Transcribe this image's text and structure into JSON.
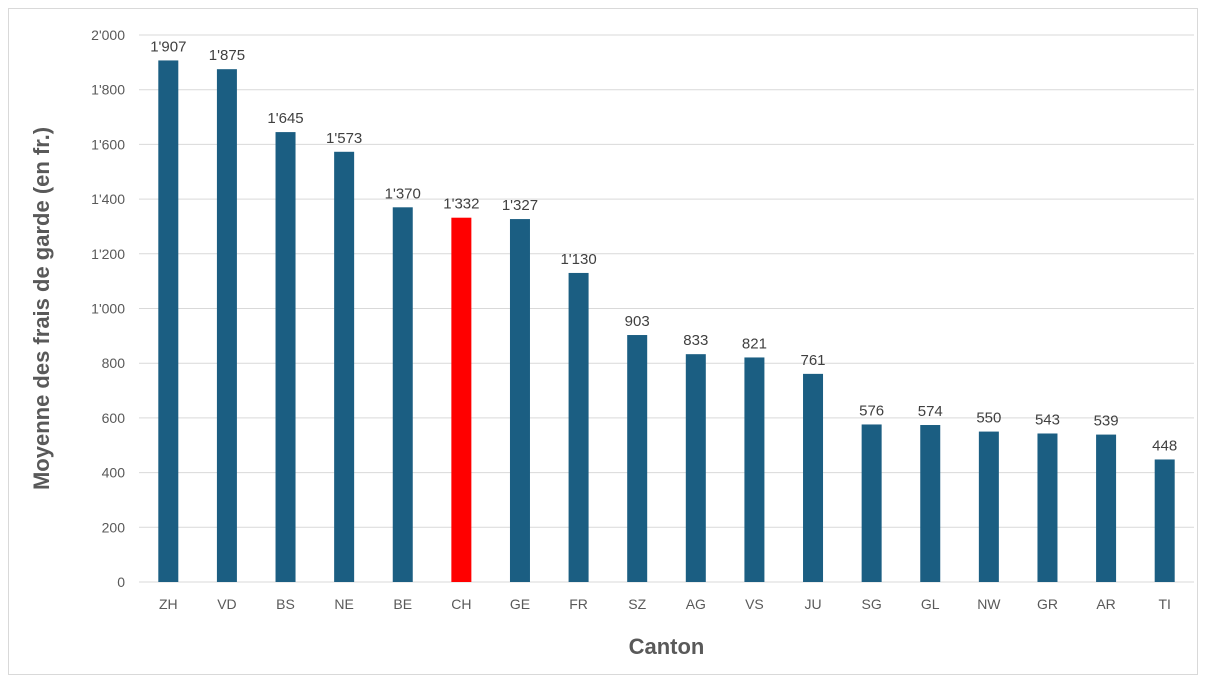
{
  "chart_data": {
    "type": "bar",
    "title": "",
    "xlabel": "Canton",
    "ylabel": "Moyenne des frais de garde (en fr.)",
    "categories": [
      "ZH",
      "VD",
      "BS",
      "NE",
      "BE",
      "CH",
      "GE",
      "FR",
      "SZ",
      "AG",
      "VS",
      "JU",
      "SG",
      "GL",
      "NW",
      "GR",
      "AR",
      "TI"
    ],
    "values": [
      1907,
      1875,
      1645,
      1573,
      1370,
      1332,
      1327,
      1130,
      903,
      833,
      821,
      761,
      576,
      574,
      550,
      543,
      539,
      448
    ],
    "data_labels": [
      "1'907",
      "1'875",
      "1'645",
      "1'573",
      "1'370",
      "1'332",
      "1'327",
      "1'130",
      "903",
      "833",
      "821",
      "761",
      "576",
      "574",
      "550",
      "543",
      "539",
      "448"
    ],
    "highlight_category": "CH",
    "ylim": [
      0,
      2000
    ],
    "yticks": [
      0,
      200,
      400,
      600,
      800,
      1000,
      1200,
      1400,
      1600,
      1800,
      2000
    ],
    "ytick_labels": [
      "0",
      "200",
      "400",
      "600",
      "800",
      "1'000",
      "1'200",
      "1'400",
      "1'600",
      "1'800",
      "2'000"
    ],
    "grid": true,
    "legend": "none",
    "colors": {
      "bar": "#1b5e82",
      "highlight": "#ff0000",
      "grid": "#d9d9d9",
      "text": "#595959"
    }
  }
}
